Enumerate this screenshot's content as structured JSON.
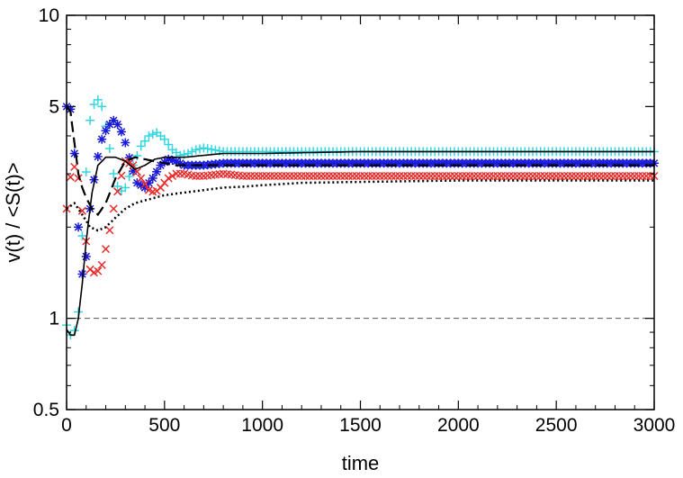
{
  "chart_data": {
    "type": "scatter",
    "title": "",
    "xlabel": "time",
    "ylabel": "v(t) / <S(t)>",
    "xlim": [
      0,
      3000
    ],
    "ylim": [
      0.5,
      10
    ],
    "yscale": "log",
    "grid": false,
    "xticks": [
      0,
      500,
      1000,
      1500,
      2000,
      2500,
      3000
    ],
    "xtick_labels": [
      "0",
      "500",
      "1000",
      "1500",
      "2000",
      "2500",
      "3000"
    ],
    "yticks": [
      0.5,
      1,
      5,
      10
    ],
    "ytick_labels": [
      "0.5",
      "1",
      "5",
      "10"
    ],
    "reference_line": {
      "y": 1,
      "style": "dashed",
      "color": "#555555"
    },
    "series": [
      {
        "marker": "plus",
        "color": "#33d6e0",
        "x": [
          0,
          30,
          60,
          90,
          120,
          150,
          180,
          210,
          240,
          270,
          300,
          340,
          380,
          420,
          460,
          500,
          540,
          580,
          620,
          660,
          700,
          750,
          800,
          900,
          1000,
          1500,
          2000,
          2500,
          3000
        ],
        "y": [
          0.95,
          0.85,
          1.05,
          2.5,
          4.5,
          5.4,
          5.0,
          4.0,
          3.0,
          2.6,
          2.7,
          3.2,
          3.7,
          4.0,
          4.1,
          3.9,
          3.6,
          3.45,
          3.5,
          3.6,
          3.65,
          3.6,
          3.55,
          3.55,
          3.55,
          3.55,
          3.55,
          3.55,
          3.55
        ]
      },
      {
        "marker": "star",
        "color": "#1a1ad8",
        "x": [
          0,
          20,
          40,
          60,
          80,
          100,
          120,
          150,
          180,
          210,
          240,
          270,
          300,
          330,
          360,
          400,
          440,
          480,
          520,
          560,
          600,
          700,
          800,
          900,
          1000,
          1500,
          2000,
          2500,
          3000
        ],
        "y": [
          5.0,
          4.9,
          3.5,
          2.0,
          1.4,
          1.6,
          2.3,
          3.2,
          3.9,
          4.3,
          4.5,
          4.3,
          3.8,
          3.2,
          2.8,
          2.7,
          2.9,
          3.2,
          3.35,
          3.3,
          3.2,
          3.2,
          3.25,
          3.25,
          3.25,
          3.25,
          3.25,
          3.25,
          3.25
        ]
      },
      {
        "marker": "x",
        "color": "#e82a2a",
        "x": [
          0,
          30,
          60,
          90,
          120,
          150,
          180,
          210,
          240,
          270,
          300,
          340,
          380,
          420,
          450,
          480,
          520,
          560,
          600,
          650,
          700,
          800,
          900,
          1000,
          1500,
          2000,
          2500,
          3000
        ],
        "y": [
          2.3,
          3.3,
          2.9,
          2.0,
          1.45,
          1.4,
          1.5,
          1.8,
          2.3,
          2.8,
          3.3,
          3.2,
          2.9,
          2.65,
          2.6,
          2.7,
          2.9,
          3.0,
          3.0,
          2.95,
          2.95,
          3.0,
          2.95,
          2.95,
          2.95,
          2.95,
          2.95,
          2.95
        ]
      },
      {
        "line": "solid",
        "color": "#000000",
        "x": [
          0,
          20,
          40,
          60,
          80,
          100,
          130,
          160,
          200,
          250,
          300,
          350,
          400,
          450,
          500,
          600,
          700,
          800,
          1000,
          1500,
          2000,
          2500,
          3000
        ],
        "y": [
          0.92,
          0.88,
          0.88,
          1.0,
          1.3,
          1.8,
          2.6,
          3.2,
          3.4,
          3.4,
          3.3,
          3.1,
          3.2,
          3.35,
          3.4,
          3.4,
          3.45,
          3.5,
          3.5,
          3.55,
          3.55,
          3.55,
          3.55
        ]
      },
      {
        "line": "dashed",
        "color": "#000000",
        "x": [
          0,
          20,
          40,
          60,
          80,
          100,
          130,
          160,
          200,
          250,
          300,
          350,
          400,
          450,
          500,
          550,
          600,
          700,
          800,
          1000,
          1500,
          2000,
          2500,
          3000
        ],
        "y": [
          5.0,
          4.8,
          3.8,
          3.0,
          2.7,
          2.5,
          2.3,
          2.2,
          2.4,
          2.9,
          3.3,
          3.4,
          3.35,
          3.3,
          3.25,
          3.2,
          3.2,
          3.2,
          3.2,
          3.2,
          3.2,
          3.2,
          3.2,
          3.2
        ]
      },
      {
        "line": "dotted",
        "color": "#000000",
        "x": [
          0,
          40,
          80,
          120,
          160,
          200,
          250,
          300,
          350,
          400,
          500,
          600,
          700,
          800,
          900,
          1000,
          1200,
          1500,
          2000,
          2500,
          3000
        ],
        "y": [
          2.3,
          2.4,
          2.2,
          2.0,
          1.95,
          2.0,
          2.15,
          2.3,
          2.4,
          2.45,
          2.55,
          2.6,
          2.65,
          2.7,
          2.72,
          2.75,
          2.8,
          2.82,
          2.85,
          2.85,
          2.85
        ]
      }
    ]
  }
}
